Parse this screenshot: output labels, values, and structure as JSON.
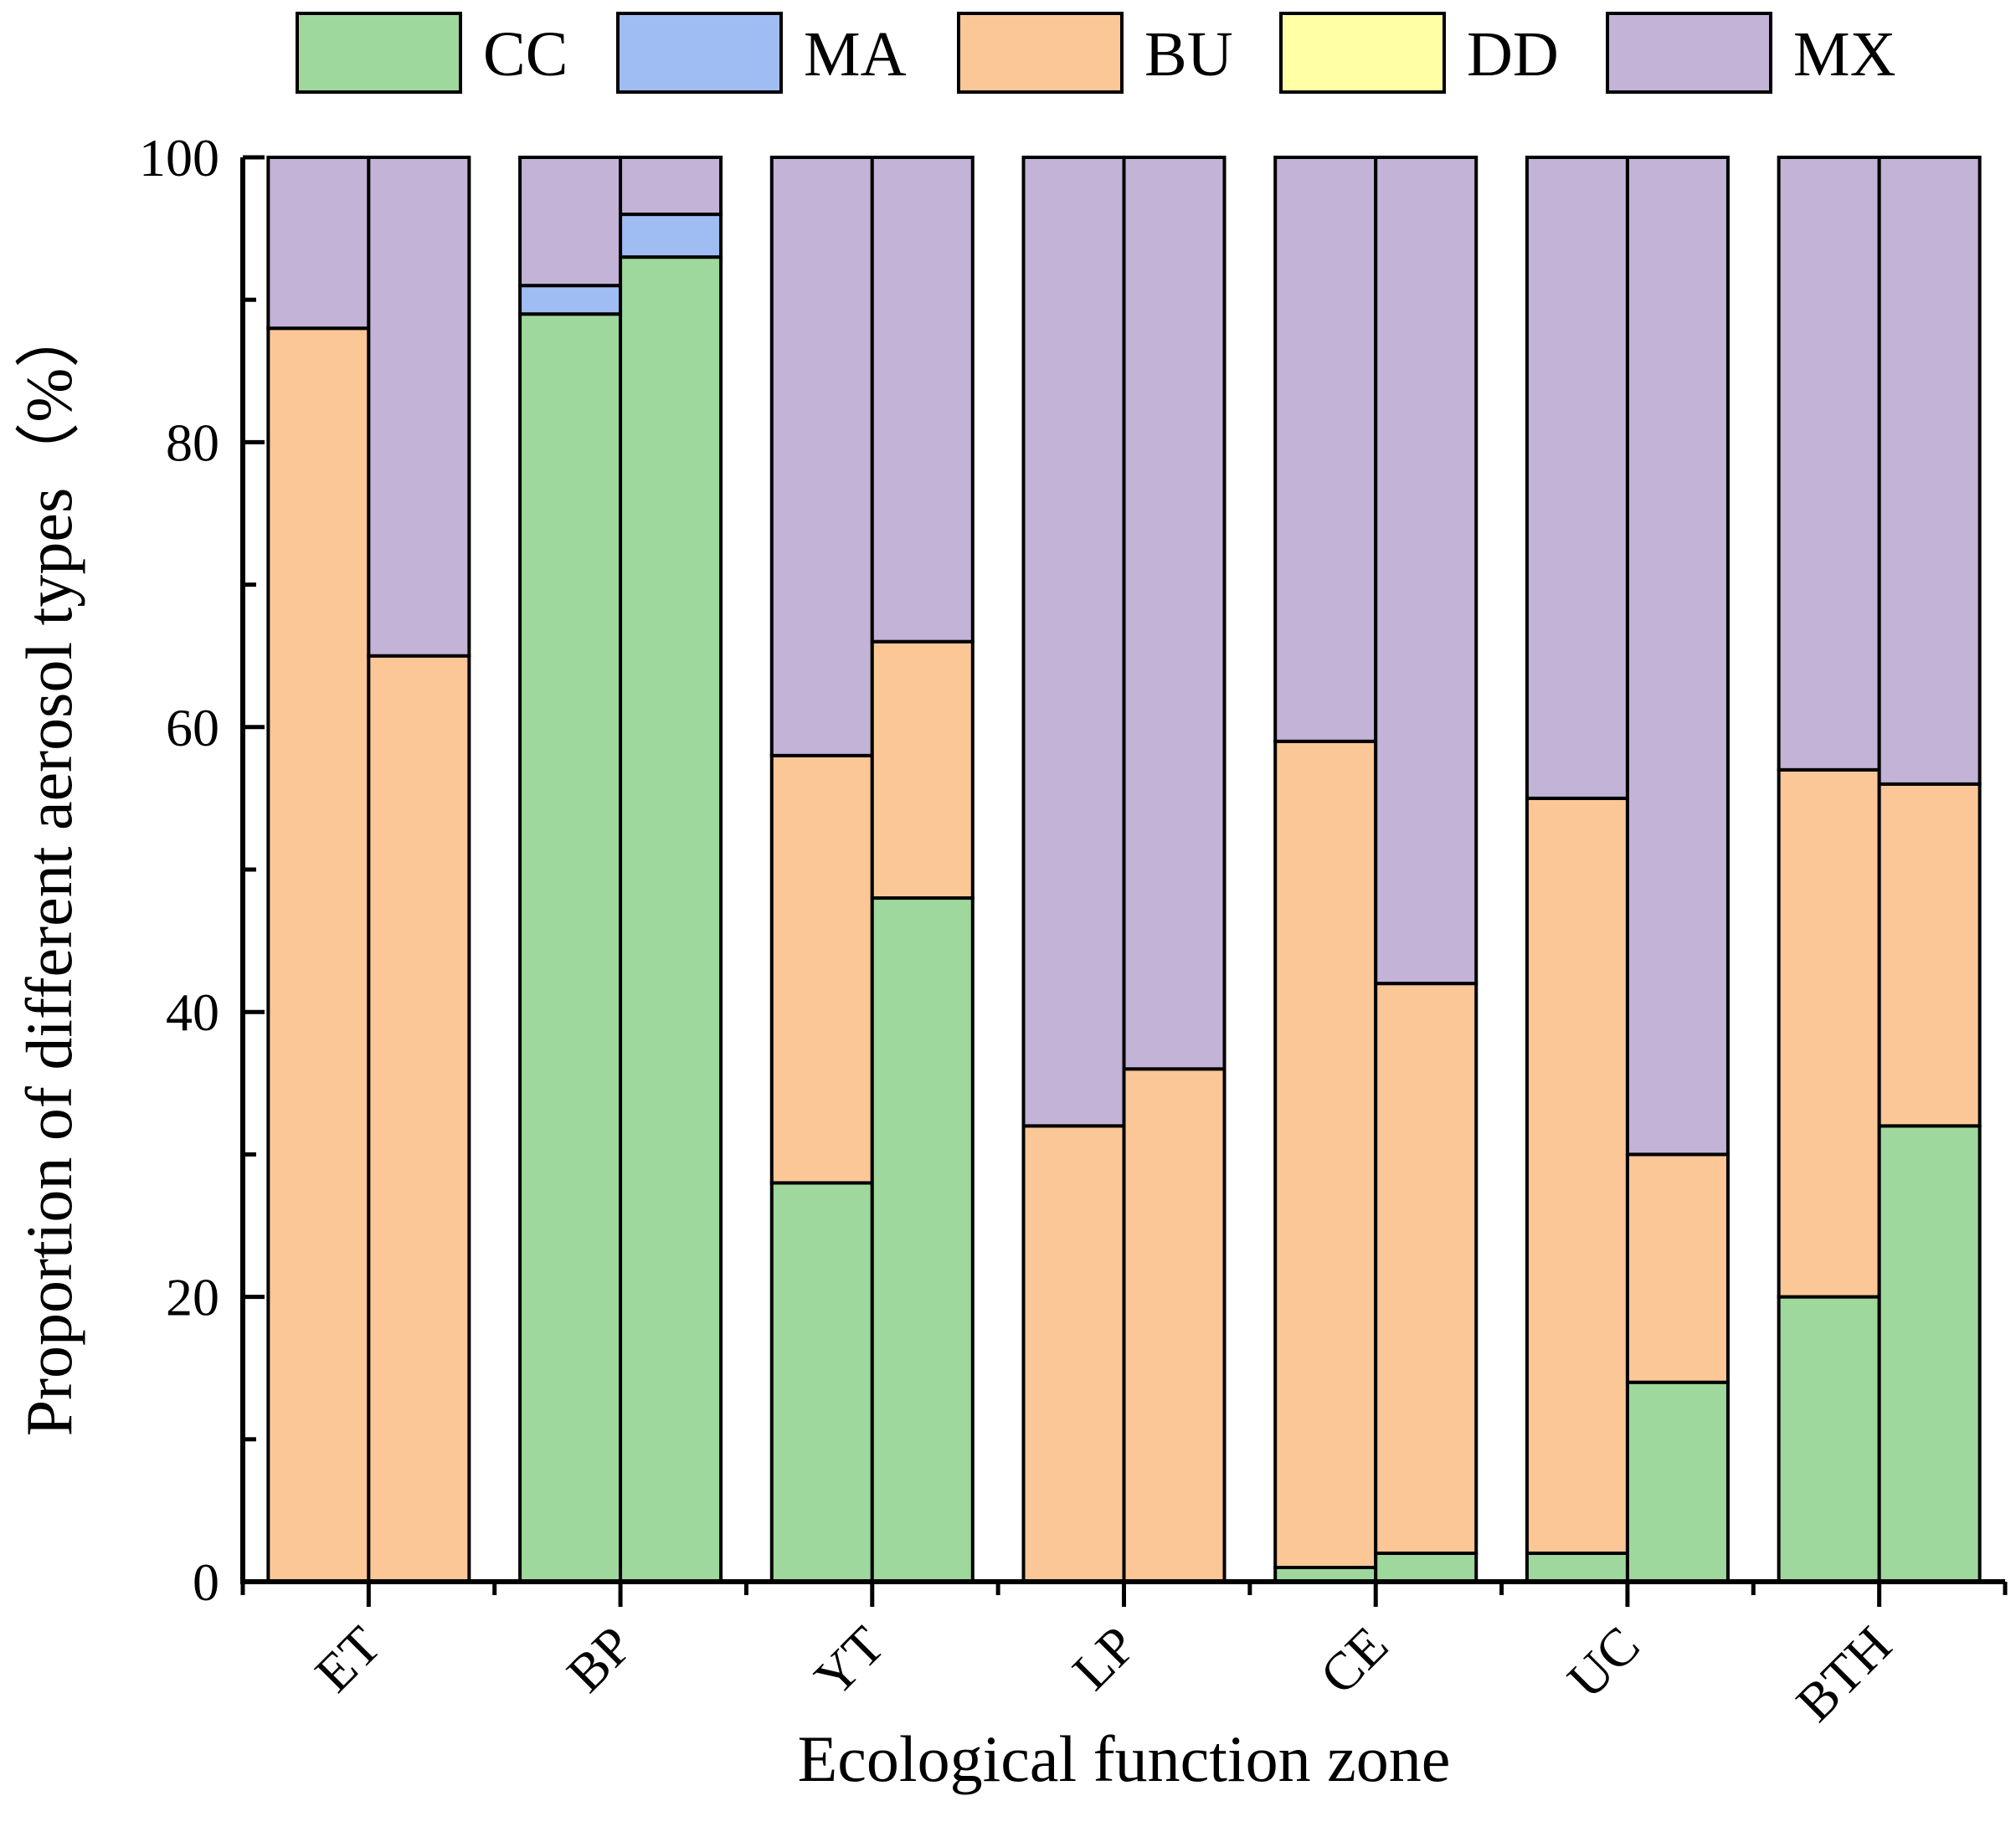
{
  "chart_data": {
    "type": "bar",
    "stacked": true,
    "grouped": true,
    "xlabel": "Ecological function zone",
    "ylabel": "Proportion of different aerosol types（%）",
    "ylim": [
      0,
      100
    ],
    "yticks": [
      "0",
      "20",
      "40",
      "60",
      "80",
      "100"
    ],
    "categories": [
      "ET",
      "BP",
      "YT",
      "LP",
      "CE",
      "UC",
      "BTH"
    ],
    "bars_per_category": 2,
    "legend_position": "top",
    "series": [
      {
        "name": "CC",
        "color": "#9fd89c",
        "values": [
          [
            0,
            0
          ],
          [
            89,
            93
          ],
          [
            28,
            48
          ],
          [
            0,
            0
          ],
          [
            1,
            2
          ],
          [
            2,
            14
          ],
          [
            20,
            32
          ]
        ]
      },
      {
        "name": "MA",
        "color": "#9fbdf2",
        "values": [
          [
            0,
            0
          ],
          [
            2,
            3
          ],
          [
            0,
            0
          ],
          [
            0,
            0
          ],
          [
            0,
            0
          ],
          [
            0,
            0
          ],
          [
            0,
            0
          ]
        ]
      },
      {
        "name": "BU",
        "color": "#fbc797",
        "values": [
          [
            88,
            65
          ],
          [
            0,
            0
          ],
          [
            30,
            18
          ],
          [
            32,
            36
          ],
          [
            58,
            40
          ],
          [
            53,
            16
          ],
          [
            37,
            24
          ]
        ]
      },
      {
        "name": "DD",
        "color": "#ffffa6",
        "values": [
          [
            0,
            0
          ],
          [
            0,
            0
          ],
          [
            0,
            0
          ],
          [
            0,
            0
          ],
          [
            0,
            0
          ],
          [
            0,
            0
          ],
          [
            0,
            0
          ]
        ]
      },
      {
        "name": "MX",
        "color": "#c2b3d7",
        "values": [
          [
            12,
            35
          ],
          [
            9,
            4
          ],
          [
            42,
            34
          ],
          [
            68,
            64
          ],
          [
            41,
            58
          ],
          [
            45,
            70
          ],
          [
            43,
            44
          ]
        ]
      }
    ]
  }
}
